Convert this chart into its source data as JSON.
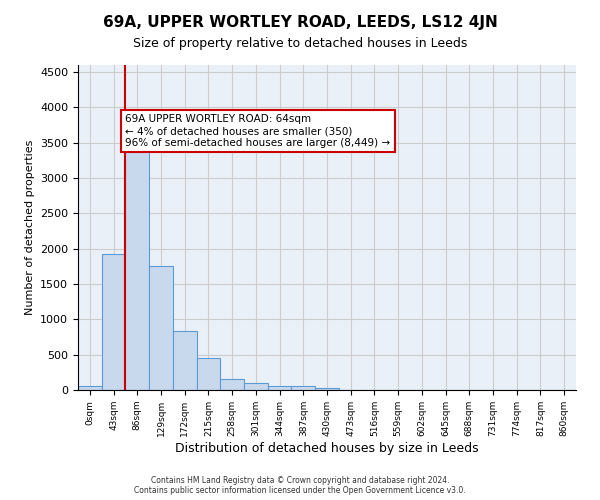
{
  "title1": "69A, UPPER WORTLEY ROAD, LEEDS, LS12 4JN",
  "title2": "Size of property relative to detached houses in Leeds",
  "xlabel": "Distribution of detached houses by size in Leeds",
  "ylabel": "Number of detached properties",
  "bar_labels": [
    "0sqm",
    "43sqm",
    "86sqm",
    "129sqm",
    "172sqm",
    "215sqm",
    "258sqm",
    "301sqm",
    "344sqm",
    "387sqm",
    "430sqm",
    "473sqm",
    "516sqm",
    "559sqm",
    "602sqm",
    "645sqm",
    "688sqm",
    "731sqm",
    "774sqm",
    "817sqm",
    "860sqm"
  ],
  "bar_values": [
    50,
    1920,
    3490,
    1760,
    840,
    455,
    160,
    100,
    60,
    55,
    35,
    0,
    0,
    0,
    0,
    0,
    0,
    0,
    0,
    0,
    0
  ],
  "bar_color": "#c9d9ed",
  "bar_edge_color": "#5b9bd5",
  "vline_x": 1,
  "vline_color": "#cc0000",
  "annotation_text": "69A UPPER WORTLEY ROAD: 64sqm\n← 4% of detached houses are smaller (350)\n96% of semi-detached houses are larger (8,449) →",
  "annotation_box_color": "#ffffff",
  "annotation_box_edge": "#cc0000",
  "ylim": [
    0,
    4600
  ],
  "yticks": [
    0,
    500,
    1000,
    1500,
    2000,
    2500,
    3000,
    3500,
    4000,
    4500
  ],
  "grid_color": "#cccccc",
  "bg_color": "#eaf0f8",
  "footer1": "Contains HM Land Registry data © Crown copyright and database right 2024.",
  "footer2": "Contains public sector information licensed under the Open Government Licence v3.0."
}
